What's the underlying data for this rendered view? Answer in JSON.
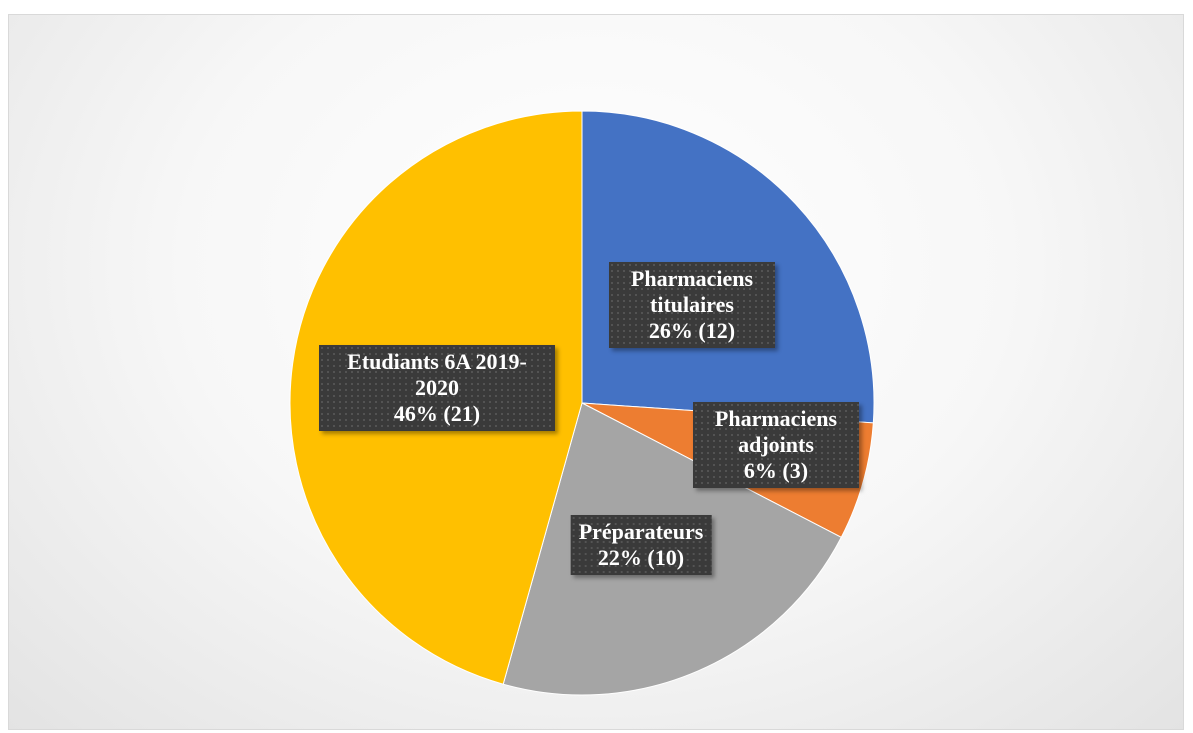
{
  "chart_data": {
    "type": "pie",
    "categories": [
      "Pharmaciens titulaires",
      "Pharmaciens adjoints",
      "Préparateurs",
      "Etudiants 6A 2019-2020"
    ],
    "values": [
      12,
      3,
      10,
      21
    ],
    "value_labels": [
      "26% (12)",
      "6% (3)",
      "22% (10)",
      "46% (21)"
    ],
    "colors": [
      "#4472c4",
      "#ed7d31",
      "#a5a5a5",
      "#ffc000"
    ]
  }
}
